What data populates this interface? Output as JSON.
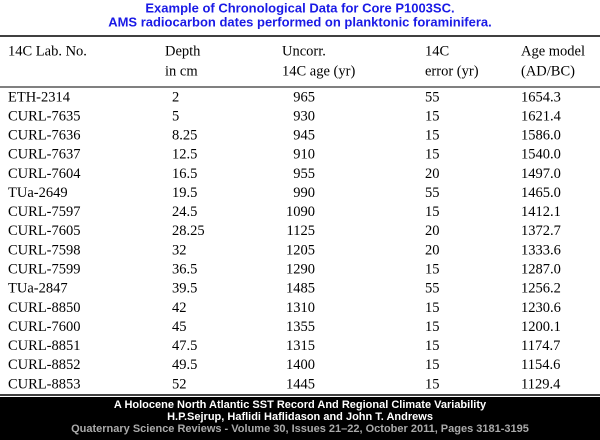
{
  "header": {
    "title": [
      "Example of Chronological Data for Core P1003SC.",
      "AMS radiocarbon dates performed on planktonic foraminifera."
    ]
  },
  "table": {
    "columns": [
      [
        "14C Lab. No."
      ],
      [
        "Depth",
        "in cm"
      ],
      [
        "Uncorr.",
        "14C age (yr)"
      ],
      [
        "14C",
        "error (yr)"
      ],
      [
        "Age model",
        "(AD/BC)"
      ]
    ],
    "rows": [
      [
        "ETH-2314",
        "2",
        "965",
        "55",
        "1654.3"
      ],
      [
        "CURL-7635",
        "5",
        "930",
        "15",
        "1621.4"
      ],
      [
        "CURL-7636",
        "8.25",
        "945",
        "15",
        "1586.0"
      ],
      [
        "CURL-7637",
        "12.5",
        "910",
        "15",
        "1540.0"
      ],
      [
        "CURL-7604",
        "16.5",
        "955",
        "20",
        "1497.0"
      ],
      [
        "TUa-2649",
        "19.5",
        "990",
        "55",
        "1465.0"
      ],
      [
        "CURL-7597",
        "24.5",
        "1090",
        "15",
        "1412.1"
      ],
      [
        "CURL-7605",
        "28.25",
        "1125",
        "20",
        "1372.7"
      ],
      [
        "CURL-7598",
        "32",
        "1205",
        "20",
        "1333.6"
      ],
      [
        "CURL-7599",
        "36.5",
        "1290",
        "15",
        "1287.0"
      ],
      [
        "TUa-2847",
        "39.5",
        "1485",
        "55",
        "1256.2"
      ],
      [
        "CURL-8850",
        "42",
        "1310",
        "15",
        "1230.6"
      ],
      [
        "CURL-7600",
        "45",
        "1355",
        "15",
        "1200.1"
      ],
      [
        "CURL-8851",
        "47.5",
        "1315",
        "15",
        "1174.7"
      ],
      [
        "CURL-8852",
        "49.5",
        "1400",
        "15",
        "1154.6"
      ],
      [
        "CURL-8853",
        "52",
        "1445",
        "15",
        "1129.4"
      ]
    ]
  },
  "footer": {
    "lines": [
      "A Holocene North Atlantic SST Record And Regional Climate Variability",
      "H.P.Sejrup, Haflidi Haflidason and John T. Andrews",
      "Quaternary Science Reviews - Volume 30, Issues 21–22, October 2011, Pages 3181-3195"
    ]
  }
}
